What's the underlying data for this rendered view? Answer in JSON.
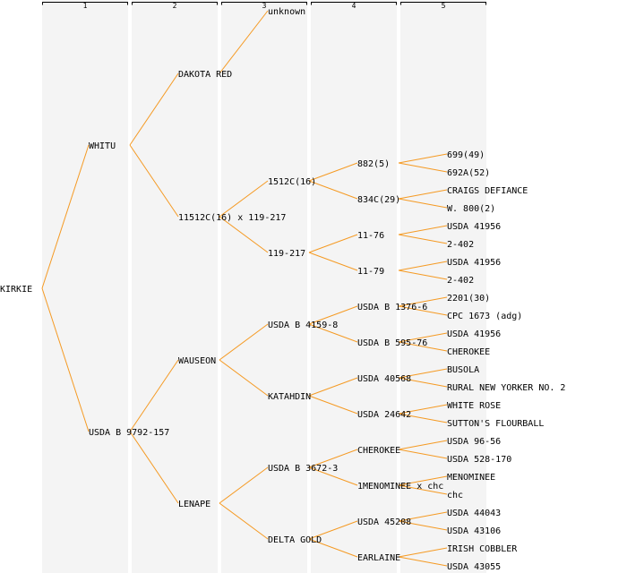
{
  "levels": [
    "1",
    "2",
    "3",
    "4",
    "5"
  ],
  "colors": {
    "edge": "#f59a23",
    "column_background": "#f4f4f4",
    "text": "#000000"
  },
  "tree": {
    "label": "KIRKIE",
    "children": [
      {
        "label": "WHITU",
        "children": [
          {
            "label": "DAKOTA RED",
            "children": [
              {
                "label": "unknown"
              }
            ]
          },
          {
            "label": "11512C(16) x 119-217",
            "children": [
              {
                "label": "1512C(16)",
                "children": [
                  {
                    "label": "882(5)",
                    "children": [
                      {
                        "label": "699(49)"
                      },
                      {
                        "label": "692A(52)"
                      }
                    ]
                  },
                  {
                    "label": "834C(29)",
                    "children": [
                      {
                        "label": "CRAIGS DEFIANCE"
                      },
                      {
                        "label": "W. 800(2)"
                      }
                    ]
                  }
                ]
              },
              {
                "label": "119-217",
                "children": [
                  {
                    "label": "11-76",
                    "children": [
                      {
                        "label": "USDA 41956"
                      },
                      {
                        "label": "2-402"
                      }
                    ]
                  },
                  {
                    "label": "11-79",
                    "children": [
                      {
                        "label": "USDA 41956"
                      },
                      {
                        "label": "2-402"
                      }
                    ]
                  }
                ]
              }
            ]
          }
        ]
      },
      {
        "label": "USDA B 9792-157",
        "children": [
          {
            "label": "WAUSEON",
            "children": [
              {
                "label": "USDA B 4159-8",
                "children": [
                  {
                    "label": "USDA B 1376-6",
                    "children": [
                      {
                        "label": "2201(30)"
                      },
                      {
                        "label": "CPC 1673 (adg)"
                      }
                    ]
                  },
                  {
                    "label": "USDA B 595-76",
                    "children": [
                      {
                        "label": "USDA 41956"
                      },
                      {
                        "label": "CHEROKEE"
                      }
                    ]
                  }
                ]
              },
              {
                "label": "KATAHDIN",
                "children": [
                  {
                    "label": "USDA 40568",
                    "children": [
                      {
                        "label": "BUSOLA"
                      },
                      {
                        "label": "RURAL NEW YORKER NO. 2"
                      }
                    ]
                  },
                  {
                    "label": "USDA 24642",
                    "children": [
                      {
                        "label": "WHITE ROSE"
                      },
                      {
                        "label": "SUTTON'S FLOURBALL"
                      }
                    ]
                  }
                ]
              }
            ]
          },
          {
            "label": "LENAPE",
            "children": [
              {
                "label": "USDA B 3672-3",
                "children": [
                  {
                    "label": "CHEROKEE",
                    "children": [
                      {
                        "label": "USDA 96-56"
                      },
                      {
                        "label": "USDA 528-170"
                      }
                    ]
                  },
                  {
                    "label": "1MENOMINEE x chc",
                    "children": [
                      {
                        "label": "MENOMINEE"
                      },
                      {
                        "label": "chc"
                      }
                    ]
                  }
                ]
              },
              {
                "label": "DELTA GOLD",
                "children": [
                  {
                    "label": "USDA 45208",
                    "children": [
                      {
                        "label": "USDA 44043"
                      },
                      {
                        "label": "USDA 43106"
                      }
                    ]
                  },
                  {
                    "label": "EARLAINE",
                    "children": [
                      {
                        "label": "IRISH COBBLER"
                      },
                      {
                        "label": "USDA 43055"
                      }
                    ]
                  }
                ]
              }
            ]
          }
        ]
      }
    ]
  }
}
